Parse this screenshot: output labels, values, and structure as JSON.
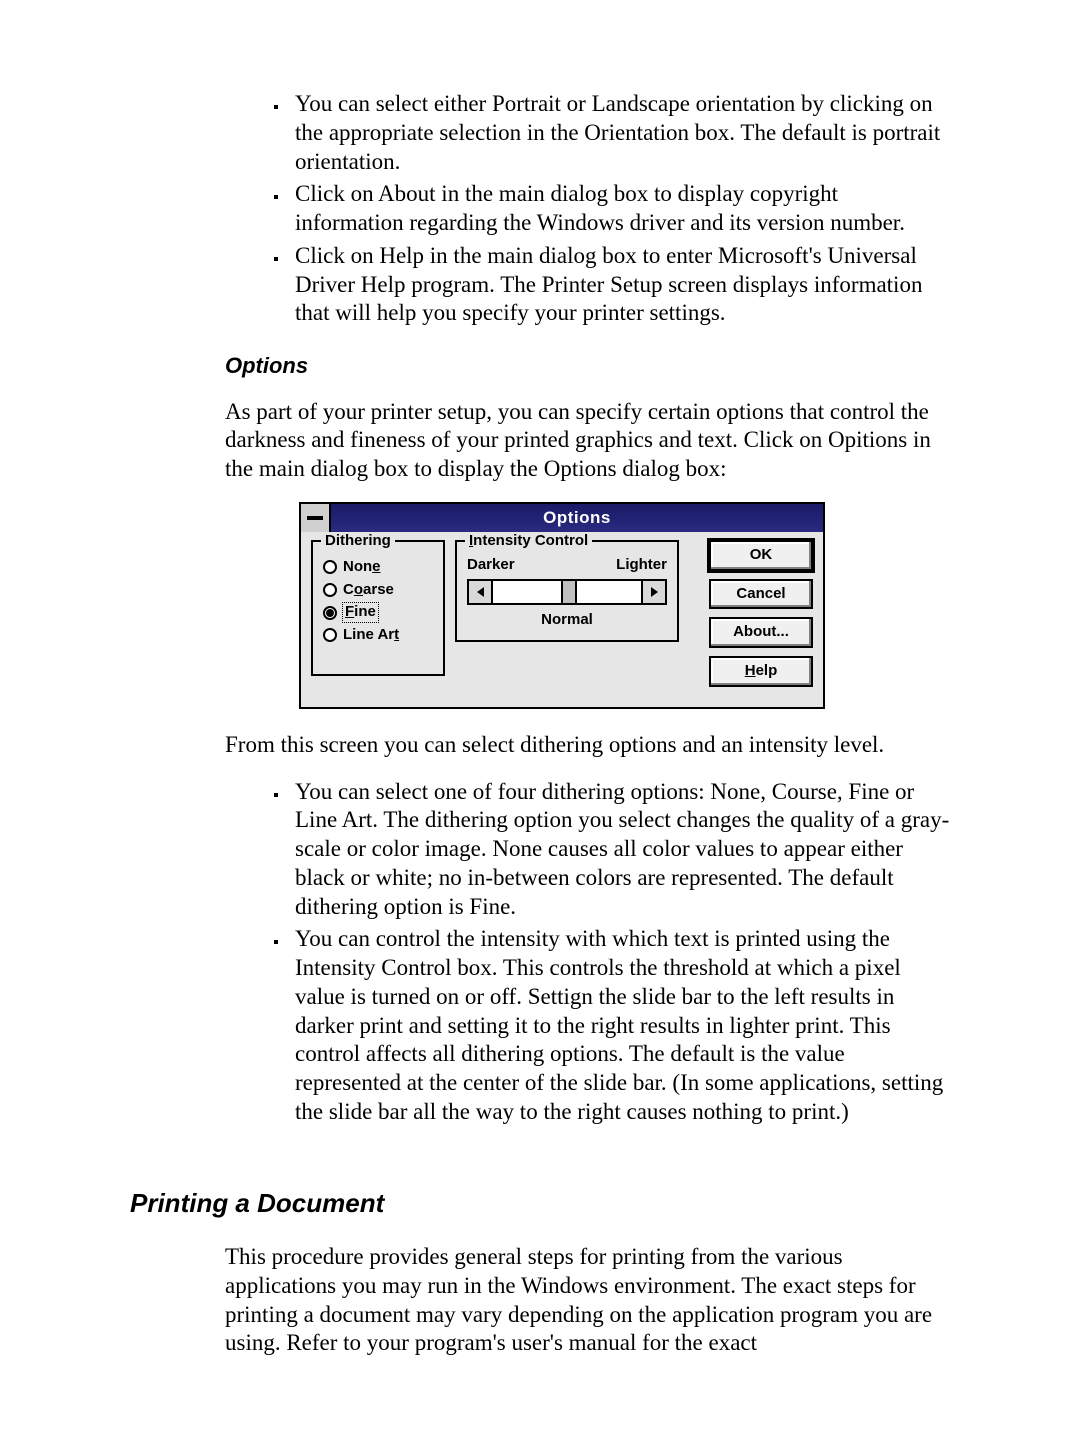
{
  "bullets_top": [
    "You can select either Portrait or Landscape orientation by clicking on the appropriate selection in the Orientation box. The default is portrait orientation.",
    "Click on About in the main dialog box to display copyright information regarding the Windows driver and its version number.",
    "Click on Help in the main dialog box to enter Microsoft's Universal Driver Help program. The Printer Setup screen displays information that will help you specify your printer settings."
  ],
  "options_heading": "Options",
  "options_intro": "As part of your printer setup, you can specify certain options that control the darkness and fineness of your printed graphics and text. Click on Opitions in the main dialog box to display the Options dialog box:",
  "dialog": {
    "title": "Options",
    "dithering_legend": "Dithering",
    "dithering_options": [
      {
        "label_html": "Non<span class='under'>e</span>",
        "checked": false,
        "focused": false
      },
      {
        "label_html": "C<span class='under'>o</span>arse",
        "checked": false,
        "focused": false
      },
      {
        "label_html": "<span class='under'>F</span>ine",
        "checked": true,
        "focused": true
      },
      {
        "label_html": "Line Ar<span class='under'>t</span>",
        "checked": false,
        "focused": false
      }
    ],
    "intensity_legend_html": "<span class='under'>I</span>ntensity Control",
    "intensity_left": "Darker",
    "intensity_right": "Lighter",
    "intensity_center_text": "Normal",
    "intensity_value_pct": 50,
    "buttons": {
      "ok": "OK",
      "cancel": "Cancel",
      "about": "About...",
      "help_html": "<span class='under'>H</span>elp"
    },
    "colors": {
      "dialog_bg": "#e6e6e6",
      "titlebar_from": "#1a1a68",
      "titlebar_to": "#2a2a80",
      "title_text": "#ffffff",
      "border": "#000000",
      "button_face": "#f0f0f0",
      "button_shadow": "#808080",
      "button_highlight": "#ffffff"
    }
  },
  "after_dialog_para": "From this screen you can select dithering options and an intensity level.",
  "bullets_bottom": [
    "You can select one of four dithering options: None, Course, Fine or Line Art. The dithering option you select changes the quality of a gray-scale or color image. None causes all color values to appear either black or white; no in-between colors are represented. The default dithering option is Fine.",
    "You can control the intensity with which text is printed using the Intensity Control box. This controls the threshold at which a pixel value is turned on or off. Settign the slide bar to the left results in darker print and setting it to the right results in lighter print. This control affects all dithering options. The default is the value represented at the center of the slide bar. (In some applications, setting the slide bar all the way to the right causes nothing to print.)"
  ],
  "printing_heading": "Printing a Document",
  "printing_para": "This procedure provides general steps for printing from the various applications you may run in the Windows environment. The exact steps for printing a document may vary depending on the application program you are using. Refer to your program's user's manual for the exact"
}
